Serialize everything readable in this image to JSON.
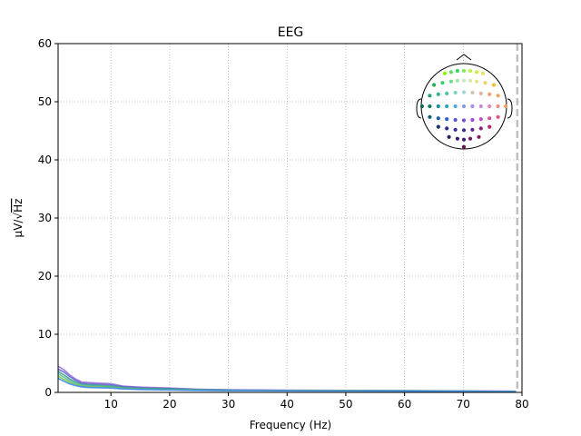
{
  "chart_data": {
    "type": "line",
    "title": "EEG",
    "xlabel": "Frequency (Hz)",
    "ylabel_prefix": "μV/√",
    "ylabel_unit": "Hz",
    "xlim": [
      1,
      80
    ],
    "ylim": [
      0,
      60
    ],
    "xticks": [
      10,
      20,
      30,
      40,
      50,
      60,
      70,
      80
    ],
    "yticks": [
      0,
      10,
      20,
      30,
      40,
      50,
      60
    ],
    "grid": true,
    "cutoff_line_x": 79.2,
    "series": [
      {
        "color": "#9370db",
        "x": [
          1,
          2,
          3,
          4,
          5,
          6,
          8,
          10,
          12,
          15,
          20,
          25,
          30,
          40,
          50,
          60,
          65,
          70,
          75,
          79
        ],
        "y": [
          4.5,
          3.9,
          3.0,
          2.3,
          1.8,
          1.7,
          1.6,
          1.5,
          1.1,
          0.9,
          0.75,
          0.55,
          0.45,
          0.38,
          0.35,
          0.32,
          0.28,
          0.25,
          0.22,
          0.2
        ]
      },
      {
        "color": "#6a5acd",
        "x": [
          1,
          2,
          3,
          4,
          5,
          6,
          8,
          10,
          12,
          15,
          20,
          25,
          30,
          40,
          50,
          60,
          65,
          70,
          75,
          79
        ],
        "y": [
          4.0,
          3.5,
          2.7,
          2.1,
          1.6,
          1.5,
          1.4,
          1.3,
          1.0,
          0.8,
          0.65,
          0.5,
          0.42,
          0.35,
          0.32,
          0.3,
          0.26,
          0.23,
          0.2,
          0.18
        ]
      },
      {
        "color": "#2a9d8f",
        "x": [
          1,
          2,
          3,
          4,
          5,
          6,
          8,
          10,
          12,
          15,
          20,
          25,
          30,
          40,
          50,
          60,
          65,
          70,
          75,
          79
        ],
        "y": [
          3.6,
          3.0,
          2.3,
          1.8,
          1.4,
          1.3,
          1.2,
          1.1,
          0.85,
          0.7,
          0.6,
          0.45,
          0.38,
          0.32,
          0.3,
          0.27,
          0.24,
          0.21,
          0.19,
          0.17
        ]
      },
      {
        "color": "#52b788",
        "x": [
          1,
          2,
          3,
          4,
          5,
          6,
          8,
          10,
          12,
          15,
          20,
          25,
          30,
          40,
          50,
          60,
          65,
          70,
          75,
          79
        ],
        "y": [
          3.2,
          2.6,
          2.0,
          1.5,
          1.2,
          1.1,
          1.0,
          0.95,
          0.75,
          0.6,
          0.5,
          0.4,
          0.35,
          0.3,
          0.28,
          0.25,
          0.22,
          0.2,
          0.18,
          0.16
        ]
      },
      {
        "color": "#7cc242",
        "x": [
          1,
          2,
          3,
          4,
          5,
          6,
          8,
          10,
          12,
          15,
          20,
          25,
          30,
          40,
          50,
          60,
          65,
          70,
          75,
          79
        ],
        "y": [
          2.8,
          2.2,
          1.7,
          1.3,
          1.05,
          0.95,
          0.9,
          0.85,
          0.65,
          0.55,
          0.45,
          0.36,
          0.32,
          0.28,
          0.26,
          0.23,
          0.2,
          0.18,
          0.16,
          0.15
        ]
      },
      {
        "color": "#3a86ff",
        "x": [
          1,
          2,
          3,
          4,
          5,
          6,
          8,
          10,
          12,
          15,
          20,
          25,
          30,
          40,
          50,
          60,
          65,
          70,
          75,
          79
        ],
        "y": [
          2.4,
          1.9,
          1.45,
          1.15,
          0.95,
          0.85,
          0.8,
          0.75,
          0.6,
          0.5,
          0.42,
          0.34,
          0.3,
          0.26,
          0.24,
          0.22,
          0.19,
          0.17,
          0.15,
          0.14
        ]
      }
    ],
    "sensor_inset": {
      "sensors": [
        {
          "px": -0.45,
          "py": -0.77,
          "color": "#7fff00"
        },
        {
          "px": -0.3,
          "py": -0.8,
          "color": "#5fe05f"
        },
        {
          "px": -0.15,
          "py": -0.83,
          "color": "#33d65c"
        },
        {
          "px": 0.0,
          "py": -0.83,
          "color": "#7ef05a"
        },
        {
          "px": 0.15,
          "py": -0.83,
          "color": "#b9f542"
        },
        {
          "px": 0.3,
          "py": -0.8,
          "color": "#d4ec3c"
        },
        {
          "px": 0.45,
          "py": -0.77,
          "color": "#e6e65a"
        },
        {
          "px": -0.7,
          "py": -0.5,
          "color": "#22b14c"
        },
        {
          "px": -0.5,
          "py": -0.55,
          "color": "#3fcf6a"
        },
        {
          "px": -0.3,
          "py": -0.58,
          "color": "#66dd88"
        },
        {
          "px": -0.15,
          "py": -0.6,
          "color": "#a0e8a0"
        },
        {
          "px": 0.0,
          "py": -0.6,
          "color": "#c8e6c9"
        },
        {
          "px": 0.15,
          "py": -0.6,
          "color": "#d7e7a3"
        },
        {
          "px": 0.3,
          "py": -0.58,
          "color": "#e3e38c"
        },
        {
          "px": 0.5,
          "py": -0.55,
          "color": "#eed26a"
        },
        {
          "px": 0.7,
          "py": -0.5,
          "color": "#f2c230"
        },
        {
          "px": -0.8,
          "py": -0.25,
          "color": "#1fa36a"
        },
        {
          "px": -0.6,
          "py": -0.28,
          "color": "#2cb58a"
        },
        {
          "px": -0.4,
          "py": -0.3,
          "color": "#4fc3a1"
        },
        {
          "px": -0.2,
          "py": -0.32,
          "color": "#7fd1c1"
        },
        {
          "px": 0.0,
          "py": -0.33,
          "color": "#a4d6d6"
        },
        {
          "px": 0.2,
          "py": -0.32,
          "color": "#c9c9b6"
        },
        {
          "px": 0.4,
          "py": -0.3,
          "color": "#e0b6a0"
        },
        {
          "px": 0.6,
          "py": -0.28,
          "color": "#f0a07a"
        },
        {
          "px": 0.8,
          "py": -0.25,
          "color": "#f7a35c"
        },
        {
          "px": -0.98,
          "py": 0.0,
          "color": "#0b6b4f"
        },
        {
          "px": -0.8,
          "py": 0.0,
          "color": "#0f7a6e"
        },
        {
          "px": -0.6,
          "py": 0.0,
          "color": "#149490"
        },
        {
          "px": -0.4,
          "py": 0.0,
          "color": "#2aa4b6"
        },
        {
          "px": -0.2,
          "py": 0.0,
          "color": "#5aa8d8"
        },
        {
          "px": 0.0,
          "py": 0.0,
          "color": "#8a9be6"
        },
        {
          "px": 0.2,
          "py": 0.0,
          "color": "#a98ee6"
        },
        {
          "px": 0.4,
          "py": 0.0,
          "color": "#c98bd8"
        },
        {
          "px": 0.6,
          "py": 0.0,
          "color": "#e38ab6"
        },
        {
          "px": 0.8,
          "py": 0.0,
          "color": "#f28a8a"
        },
        {
          "px": 0.98,
          "py": 0.0,
          "color": "#f5a05a"
        },
        {
          "px": -0.8,
          "py": 0.25,
          "color": "#0d5a7a"
        },
        {
          "px": -0.6,
          "py": 0.28,
          "color": "#1a5fa0"
        },
        {
          "px": -0.4,
          "py": 0.3,
          "color": "#3060c8"
        },
        {
          "px": -0.2,
          "py": 0.32,
          "color": "#5a55d8"
        },
        {
          "px": 0.0,
          "py": 0.33,
          "color": "#7a4fd8"
        },
        {
          "px": 0.2,
          "py": 0.32,
          "color": "#9a4fd0"
        },
        {
          "px": 0.4,
          "py": 0.3,
          "color": "#c04fc0"
        },
        {
          "px": 0.6,
          "py": 0.28,
          "color": "#d94fa0"
        },
        {
          "px": 0.8,
          "py": 0.25,
          "color": "#e8507a"
        },
        {
          "px": -0.6,
          "py": 0.48,
          "color": "#1c2f6b"
        },
        {
          "px": -0.4,
          "py": 0.52,
          "color": "#2a2f8a"
        },
        {
          "px": -0.2,
          "py": 0.55,
          "color": "#3a2a9a"
        },
        {
          "px": 0.0,
          "py": 0.56,
          "color": "#4a2590"
        },
        {
          "px": 0.2,
          "py": 0.55,
          "color": "#6a238a"
        },
        {
          "px": 0.4,
          "py": 0.52,
          "color": "#8a237a"
        },
        {
          "px": 0.6,
          "py": 0.48,
          "color": "#b02a6a"
        },
        {
          "px": -0.35,
          "py": 0.72,
          "color": "#2a1f5a"
        },
        {
          "px": -0.15,
          "py": 0.76,
          "color": "#3a1a6a"
        },
        {
          "px": 0.0,
          "py": 0.78,
          "color": "#4a186a"
        },
        {
          "px": 0.15,
          "py": 0.76,
          "color": "#6a1870"
        },
        {
          "px": 0.35,
          "py": 0.72,
          "color": "#8a1860"
        },
        {
          "px": 0.0,
          "py": 0.95,
          "color": "#6a1050"
        }
      ]
    }
  }
}
